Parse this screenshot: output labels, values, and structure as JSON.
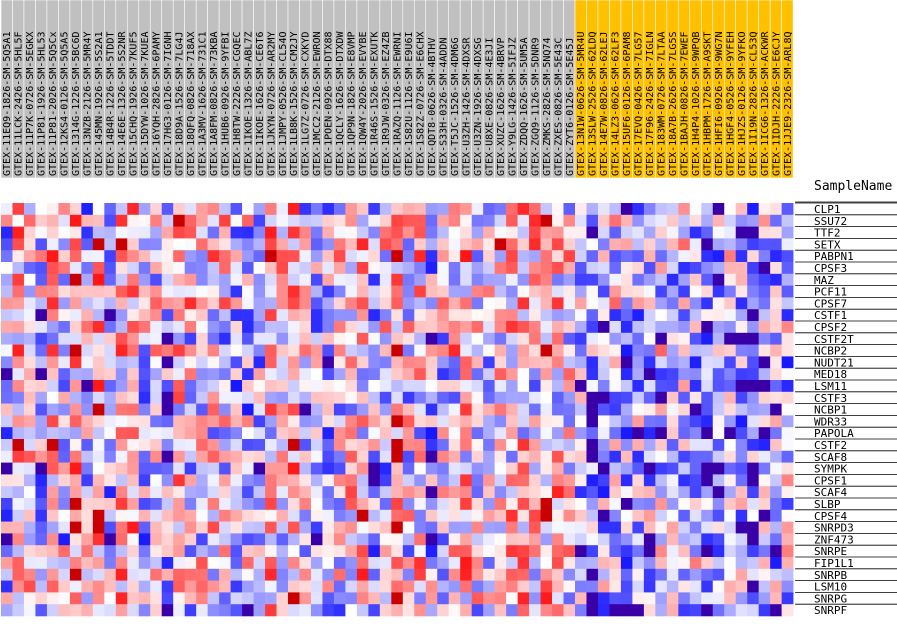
{
  "chart_data": {
    "type": "heatmap",
    "title": "",
    "xlabel": "",
    "ylabel": "",
    "row_header": "SampleName",
    "columns": [
      {
        "name": "GTEX-11EQ9-1826-SM-5Q5A1",
        "group": "gray"
      },
      {
        "name": "GTEX-11LCK-2426-SM-5HL5F",
        "group": "gray"
      },
      {
        "name": "GTEX-11P7K-0726-SM-5EGKX",
        "group": "gray"
      },
      {
        "name": "GTEX-11P81-1926-SM-5HL53",
        "group": "gray"
      },
      {
        "name": "GTEX-11P81-2026-SM-5Q5Cx",
        "group": "gray"
      },
      {
        "name": "GTEX-12KS4-0126-SM-5Q5A5",
        "group": "gray"
      },
      {
        "name": "GTEX-1314G-1226-SM-5BC6D",
        "group": "gray"
      },
      {
        "name": "GTEX-13NZB-2126-SM-5MR4Y",
        "group": "gray"
      },
      {
        "name": "GTEX-145MN-1926-SM-5S2A1",
        "group": "gray"
      },
      {
        "name": "GTEX-14B4R-1226-SM-5TDDT",
        "group": "gray"
      },
      {
        "name": "GTEX-14E6E-1326-SM-5S2NR",
        "group": "gray"
      },
      {
        "name": "GTEX-15CHQ-1926-SM-7KUF5",
        "group": "gray"
      },
      {
        "name": "GTEX-15DYW-1026-SM-7KUEA",
        "group": "gray"
      },
      {
        "name": "GTEX-16YQH-2826-SM-6PAMY",
        "group": "gray"
      },
      {
        "name": "GTEX-17HG3-0126-SM-7IGNH",
        "group": "gray"
      },
      {
        "name": "GTEX-18D9A-1526-SM-7LG4J",
        "group": "gray"
      },
      {
        "name": "GTEX-18QFQ-0826-SM-718AX",
        "group": "gray"
      },
      {
        "name": "GTEX-1A3MV-1626-SM-731C1",
        "group": "gray"
      },
      {
        "name": "GTEX-1A8FM-0826-SM-73KBA",
        "group": "gray"
      },
      {
        "name": "GTEX-1HUB6-0926-SM-9YFBI",
        "group": "gray"
      },
      {
        "name": "GTEX-1H8TW-2226-SM-CGQEC",
        "group": "gray"
      },
      {
        "name": "GTEX-1IKOE-1326-SM-ABL7Z",
        "group": "gray"
      },
      {
        "name": "GTEX-1IKOE-1626-SM-CE6T6",
        "group": "gray"
      },
      {
        "name": "GTEX-1JKYN-0726-SM-AR2MY",
        "group": "gray"
      },
      {
        "name": "GTEX-1JMPY-0526-SM-CL54O",
        "group": "gray"
      },
      {
        "name": "GTEX-1LB8K-1526-SM-CM2JY",
        "group": "gray"
      },
      {
        "name": "GTEX-1LG7Z-0726-SM-CXKYD",
        "group": "gray"
      },
      {
        "name": "GTEX-1MCC2-2126-SM-EWRON",
        "group": "gray"
      },
      {
        "name": "GTEX-1POEN-0926-SM-DTX88",
        "group": "gray"
      },
      {
        "name": "GTEX-1QCLY-1626-SM-DTXDW",
        "group": "gray"
      },
      {
        "name": "GTEX-1QP9N-1826-SM-E8VMP",
        "group": "gray"
      },
      {
        "name": "GTEX-1QW4Y-2026-SM-EVYBE",
        "group": "gray"
      },
      {
        "name": "GTEX-1R46S-1526-SM-EXUTK",
        "group": "gray"
      },
      {
        "name": "GTEX-1R9JW-0326-SM-EZ4ZB",
        "group": "gray"
      },
      {
        "name": "GTEX-1RAZQ-1126-SM-EWRNI",
        "group": "gray"
      },
      {
        "name": "GTEX-1S82U-1126-SM-E9U6I",
        "group": "gray"
      },
      {
        "name": "GTEX-1S82Z-0726-SM-E6CHX",
        "group": "gray"
      },
      {
        "name": "GTEX-QDT8-0626-SM-4BTHV",
        "group": "gray"
      },
      {
        "name": "GTEX-S33H-0326-SM-4ADDN",
        "group": "gray"
      },
      {
        "name": "GTEX-T5JC-1526-SM-4DM6G",
        "group": "gray"
      },
      {
        "name": "GTEX-U3ZH-1426-SM-4DXSR",
        "group": "gray"
      },
      {
        "name": "GTEX-U3ZN-1926-SM-4DXSG",
        "group": "gray"
      },
      {
        "name": "GTEX-U8XE-0826-SM-4E3JI",
        "group": "gray"
      },
      {
        "name": "GTEX-XUZC-1626-SM-4BRVP",
        "group": "gray"
      },
      {
        "name": "GTEX-Y9LG-1426-SM-5IFJZ",
        "group": "gray"
      },
      {
        "name": "GTEX-ZDQQ-1626-SM-5UM5A",
        "group": "gray"
      },
      {
        "name": "GTEX-ZGQ9-1126-SM-5DNR9",
        "group": "gray"
      },
      {
        "name": "GTEX-ZMKS-2826-SM-5NQ74",
        "group": "gray"
      },
      {
        "name": "GTEX-ZXES-0826-SM-5E43C",
        "group": "gray"
      },
      {
        "name": "GTEX-ZYT6-0126-SM-5E45J",
        "group": "gray"
      },
      {
        "name": "GTEX-13N1W-0626-SM-5MR4U",
        "group": "gold"
      },
      {
        "name": "GTEX-13SLW-2526-SM-62LDQ",
        "group": "gold"
      },
      {
        "name": "GTEX-14E7W-0826-SM-62LEJ",
        "group": "gold"
      },
      {
        "name": "GTEX-14LZ3-0626-SM-62LF3",
        "group": "gold"
      },
      {
        "name": "GTEX-15UF6-0126-SM-6PAM8",
        "group": "gold"
      },
      {
        "name": "GTEX-17EVQ-0426-SM-7LG57",
        "group": "gold"
      },
      {
        "name": "GTEX-17F96-2426-SM-7IGLN",
        "group": "gold"
      },
      {
        "name": "GTEX-183WM-0726-SM-7LTAA",
        "group": "gold"
      },
      {
        "name": "GTEX-18A7B-2626-SM-7LG5S",
        "group": "gold"
      },
      {
        "name": "GTEX-1BAJH-0826-SM-7EWEF",
        "group": "gold"
      },
      {
        "name": "GTEX-1H4P4-1026-SM-9WPQB",
        "group": "gold"
      },
      {
        "name": "GTEX-1HBPM-1726-SM-A9SKT",
        "group": "gold"
      },
      {
        "name": "GTEX-1HFI6-0926-SM-9WG7N",
        "group": "gold"
      },
      {
        "name": "GTEX-1HGF4-0526-SM-9YFEH",
        "group": "gold"
      },
      {
        "name": "GTEX-1HJZS-0126-SM-9YFKO",
        "group": "gold"
      },
      {
        "name": "GTEX-1I19N-2826-SM-CL53Q",
        "group": "gold"
      },
      {
        "name": "GTEX-1ICG6-1326-SM-ACKWR",
        "group": "gold"
      },
      {
        "name": "GTEX-1IDJH-2226-SM-E6CJY",
        "group": "gold"
      },
      {
        "name": "GTEX-1JJE9-2326-SM-ARL8Q",
        "group": "gold"
      }
    ],
    "rows": [
      "CLP1",
      "SSU72",
      "TTF2",
      "SETX",
      "PABPN1",
      "CPSF3",
      "MAZ",
      "PCF11",
      "CPSF7",
      "CSTF1",
      "CPSF2",
      "CSTF2T",
      "NCBP2",
      "NUDT21",
      "MED18",
      "LSM11",
      "CSTF3",
      "NCBP1",
      "WDR33",
      "PAPOLA",
      "CSTF2",
      "SCAF8",
      "SYMPK",
      "CPSF1",
      "SCAF4",
      "SLBP",
      "CPSF4",
      "SNRPD3",
      "ZNF473",
      "SNRPE",
      "FIP1L1",
      "SNRPB",
      "LSM10",
      "SNRPG",
      "SNRPF"
    ],
    "value_range": [
      -3,
      3
    ],
    "palette": {
      "low": "#0000ff",
      "mid": "#ffffff",
      "high": "#ff0000",
      "extreme_low": "#3a00a8",
      "extreme_high": "#c80000"
    },
    "group_colors": {
      "gray": "#c0c0c0",
      "gold": "#ffc000"
    },
    "values_note": "",
    "grid": false,
    "legend": "none"
  }
}
